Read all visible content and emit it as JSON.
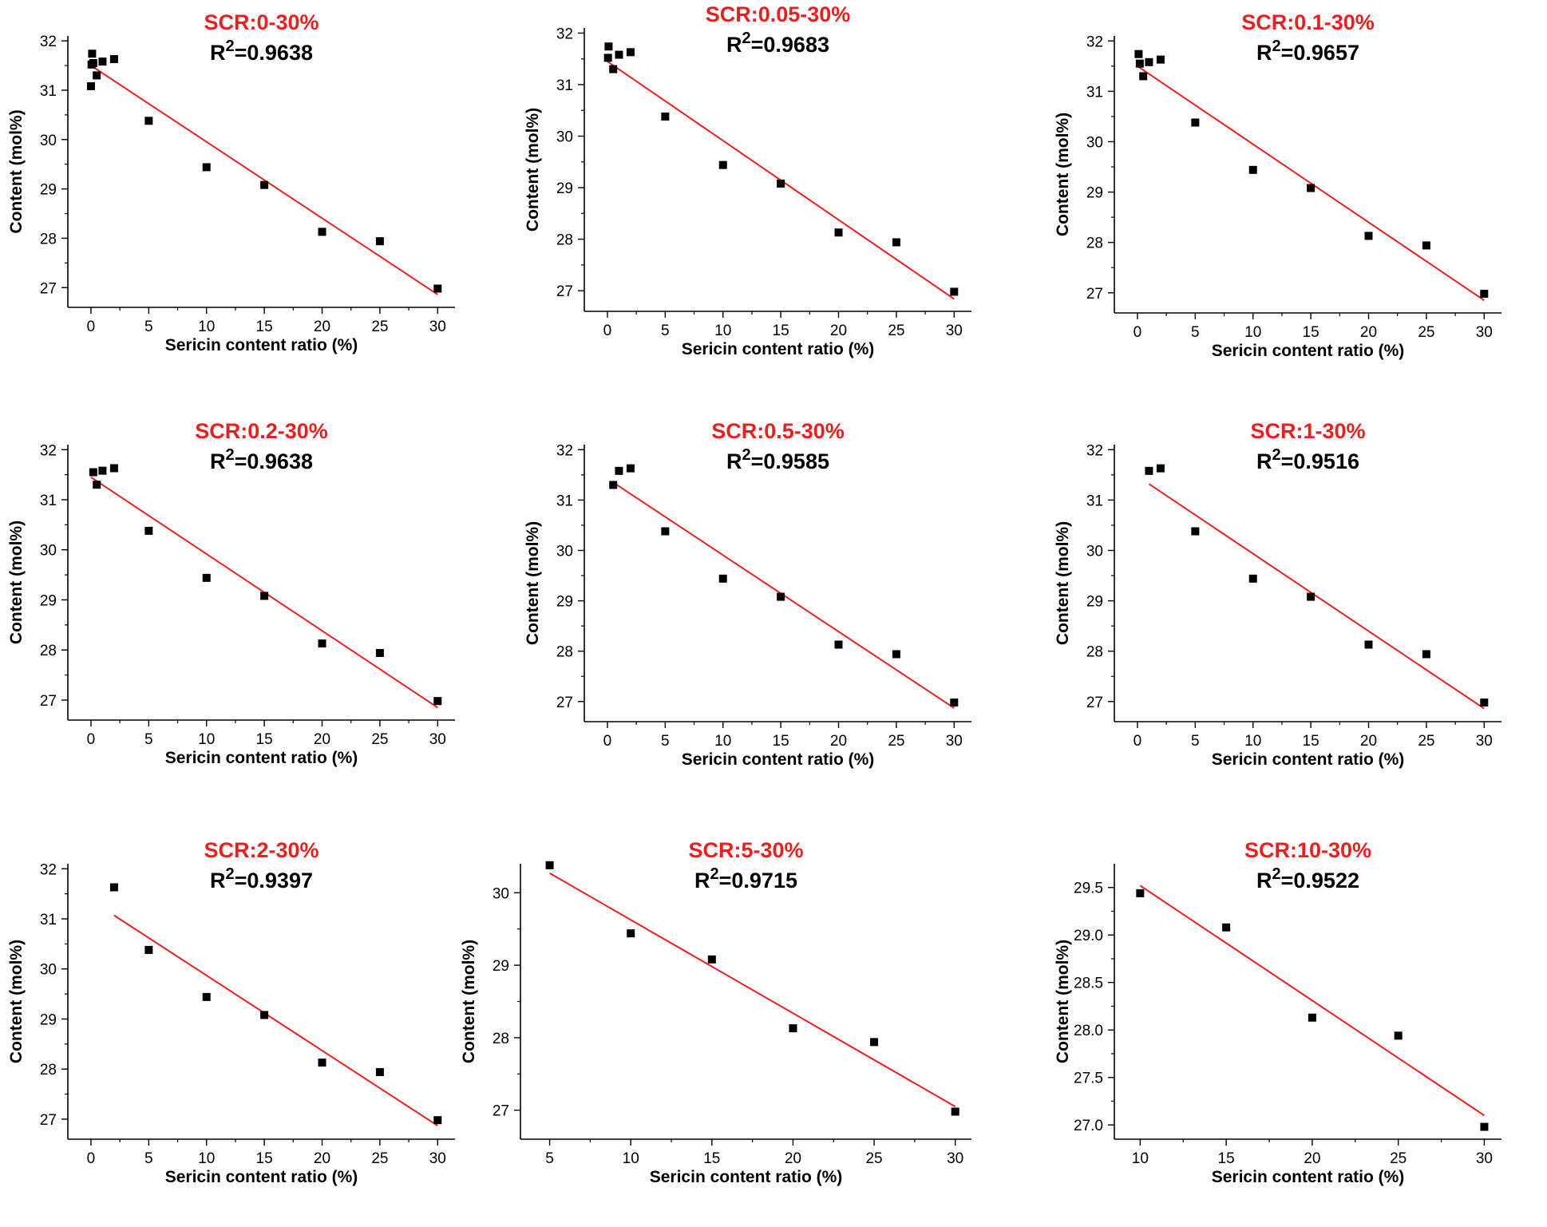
{
  "style": {
    "title_color": "#e82020",
    "fit_line_color": "#e82020",
    "marker_color": "#000000"
  },
  "chart_data": [
    {
      "type": "scatter",
      "title": "SCR:0-30%",
      "annotation": {
        "prefix": "R",
        "superscript": "2",
        "value": "=0.9638"
      },
      "xlabel": "Sericin content ratio (%)",
      "ylabel": "Content (mol%)",
      "xlim": [
        -2,
        31.5
      ],
      "ylim": [
        26.6,
        32.1
      ],
      "xticks": [
        0,
        5,
        10,
        15,
        20,
        25,
        30
      ],
      "xtick_labels": [
        "0",
        "5",
        "10",
        "15",
        "20",
        "25",
        "30"
      ],
      "yticks": [
        27,
        28,
        29,
        30,
        31,
        32
      ],
      "ytick_labels": [
        "27",
        "28",
        "29",
        "30",
        "31",
        "32"
      ],
      "points": [
        [
          0,
          31.08
        ],
        [
          0.05,
          31.52
        ],
        [
          0.1,
          31.74
        ],
        [
          0.2,
          31.55
        ],
        [
          0.5,
          31.3
        ],
        [
          1,
          31.58
        ],
        [
          2,
          31.63
        ],
        [
          5,
          30.38
        ],
        [
          10,
          29.44
        ],
        [
          15,
          29.08
        ],
        [
          20,
          28.13
        ],
        [
          25,
          27.94
        ],
        [
          30,
          26.98
        ]
      ],
      "fit_line": [
        [
          0,
          31.5
        ],
        [
          30,
          26.86
        ]
      ],
      "legend": "none",
      "grid": false
    },
    {
      "type": "scatter",
      "title": "SCR:0.05-30%",
      "annotation": {
        "prefix": "R",
        "superscript": "2",
        "value": "=0.9683"
      },
      "xlabel": "Sericin content ratio (%)",
      "ylabel": "Content (mol%)",
      "xlim": [
        -2,
        31.5
      ],
      "ylim": [
        26.6,
        32.1
      ],
      "xticks": [
        0,
        5,
        10,
        15,
        20,
        25,
        30
      ],
      "xtick_labels": [
        "0",
        "5",
        "10",
        "15",
        "20",
        "25",
        "30"
      ],
      "yticks": [
        27,
        28,
        29,
        30,
        31,
        32
      ],
      "ytick_labels": [
        "27",
        "28",
        "29",
        "30",
        "31",
        "32"
      ],
      "points": [
        [
          0.05,
          31.52
        ],
        [
          0.1,
          31.74
        ],
        [
          0.5,
          31.3
        ],
        [
          1,
          31.58
        ],
        [
          2,
          31.63
        ],
        [
          5,
          30.38
        ],
        [
          10,
          29.44
        ],
        [
          15,
          29.08
        ],
        [
          20,
          28.13
        ],
        [
          25,
          27.94
        ],
        [
          30,
          26.98
        ]
      ],
      "fit_line": [
        [
          0,
          31.45
        ],
        [
          30,
          26.84
        ]
      ],
      "legend": "none",
      "grid": false
    },
    {
      "type": "scatter",
      "title": "SCR:0.1-30%",
      "annotation": {
        "prefix": "R",
        "superscript": "2",
        "value": "=0.9657"
      },
      "xlabel": "Sericin content ratio (%)",
      "ylabel": "Content (mol%)",
      "xlim": [
        -2,
        31.5
      ],
      "ylim": [
        26.6,
        32.1
      ],
      "xticks": [
        0,
        5,
        10,
        15,
        20,
        25,
        30
      ],
      "xtick_labels": [
        "0",
        "5",
        "10",
        "15",
        "20",
        "25",
        "30"
      ],
      "yticks": [
        27,
        28,
        29,
        30,
        31,
        32
      ],
      "ytick_labels": [
        "27",
        "28",
        "29",
        "30",
        "31",
        "32"
      ],
      "points": [
        [
          0.1,
          31.74
        ],
        [
          0.2,
          31.55
        ],
        [
          0.5,
          31.3
        ],
        [
          1,
          31.58
        ],
        [
          2,
          31.63
        ],
        [
          5,
          30.38
        ],
        [
          10,
          29.44
        ],
        [
          15,
          29.08
        ],
        [
          20,
          28.13
        ],
        [
          25,
          27.94
        ],
        [
          30,
          26.98
        ]
      ],
      "fit_line": [
        [
          0,
          31.5
        ],
        [
          30,
          26.85
        ]
      ],
      "legend": "none",
      "grid": false
    },
    {
      "type": "scatter",
      "title": "SCR:0.2-30%",
      "annotation": {
        "prefix": "R",
        "superscript": "2",
        "value": "=0.9638"
      },
      "xlabel": "Sericin content ratio (%)",
      "ylabel": "Content (mol%)",
      "xlim": [
        -2,
        31.5
      ],
      "ylim": [
        26.6,
        32.1
      ],
      "xticks": [
        0,
        5,
        10,
        15,
        20,
        25,
        30
      ],
      "xtick_labels": [
        "0",
        "5",
        "10",
        "15",
        "20",
        "25",
        "30"
      ],
      "yticks": [
        27,
        28,
        29,
        30,
        31,
        32
      ],
      "ytick_labels": [
        "27",
        "28",
        "29",
        "30",
        "31",
        "32"
      ],
      "points": [
        [
          0.2,
          31.55
        ],
        [
          0.5,
          31.3
        ],
        [
          1,
          31.58
        ],
        [
          2,
          31.63
        ],
        [
          5,
          30.38
        ],
        [
          10,
          29.44
        ],
        [
          15,
          29.08
        ],
        [
          20,
          28.13
        ],
        [
          25,
          27.94
        ],
        [
          30,
          26.98
        ]
      ],
      "fit_line": [
        [
          0,
          31.45
        ],
        [
          30,
          26.85
        ]
      ],
      "legend": "none",
      "grid": false
    },
    {
      "type": "scatter",
      "title": "SCR:0.5-30%",
      "annotation": {
        "prefix": "R",
        "superscript": "2",
        "value": "=0.9585"
      },
      "xlabel": "Sericin content ratio (%)",
      "ylabel": "Content (mol%)",
      "xlim": [
        -2,
        31.5
      ],
      "ylim": [
        26.6,
        32.1
      ],
      "xticks": [
        0,
        5,
        10,
        15,
        20,
        25,
        30
      ],
      "xtick_labels": [
        "0",
        "5",
        "10",
        "15",
        "20",
        "25",
        "30"
      ],
      "yticks": [
        27,
        28,
        29,
        30,
        31,
        32
      ],
      "ytick_labels": [
        "27",
        "28",
        "29",
        "30",
        "31",
        "32"
      ],
      "points": [
        [
          0.5,
          31.3
        ],
        [
          1,
          31.58
        ],
        [
          2,
          31.63
        ],
        [
          5,
          30.38
        ],
        [
          10,
          29.44
        ],
        [
          15,
          29.08
        ],
        [
          20,
          28.13
        ],
        [
          25,
          27.94
        ],
        [
          30,
          26.98
        ]
      ],
      "fit_line": [
        [
          0.5,
          31.35
        ],
        [
          30,
          26.87
        ]
      ],
      "legend": "none",
      "grid": false
    },
    {
      "type": "scatter",
      "title": "SCR:1-30%",
      "annotation": {
        "prefix": "R",
        "superscript": "2",
        "value": "=0.9516"
      },
      "xlabel": "Sericin content ratio (%)",
      "ylabel": "Content (mol%)",
      "xlim": [
        -2,
        31.5
      ],
      "ylim": [
        26.6,
        32.1
      ],
      "xticks": [
        0,
        5,
        10,
        15,
        20,
        25,
        30
      ],
      "xtick_labels": [
        "0",
        "5",
        "10",
        "15",
        "20",
        "25",
        "30"
      ],
      "yticks": [
        27,
        28,
        29,
        30,
        31,
        32
      ],
      "ytick_labels": [
        "27",
        "28",
        "29",
        "30",
        "31",
        "32"
      ],
      "points": [
        [
          1,
          31.58
        ],
        [
          2,
          31.63
        ],
        [
          5,
          30.38
        ],
        [
          10,
          29.44
        ],
        [
          15,
          29.08
        ],
        [
          20,
          28.13
        ],
        [
          25,
          27.94
        ],
        [
          30,
          26.98
        ]
      ],
      "fit_line": [
        [
          1,
          31.32
        ],
        [
          30,
          26.86
        ]
      ],
      "legend": "none",
      "grid": false
    },
    {
      "type": "scatter",
      "title": "SCR:2-30%",
      "annotation": {
        "prefix": "R",
        "superscript": "2",
        "value": "=0.9397"
      },
      "xlabel": "Sericin content ratio (%)",
      "ylabel": "Content (mol%)",
      "xlim": [
        -2,
        31.5
      ],
      "ylim": [
        26.6,
        32.1
      ],
      "xticks": [
        0,
        5,
        10,
        15,
        20,
        25,
        30
      ],
      "xtick_labels": [
        "0",
        "5",
        "10",
        "15",
        "20",
        "25",
        "30"
      ],
      "yticks": [
        27,
        28,
        29,
        30,
        31,
        32
      ],
      "ytick_labels": [
        "27",
        "28",
        "29",
        "30",
        "31",
        "32"
      ],
      "points": [
        [
          2,
          31.63
        ],
        [
          5,
          30.38
        ],
        [
          10,
          29.44
        ],
        [
          15,
          29.08
        ],
        [
          20,
          28.13
        ],
        [
          25,
          27.94
        ],
        [
          30,
          26.98
        ]
      ],
      "fit_line": [
        [
          2,
          31.07
        ],
        [
          30,
          26.87
        ]
      ],
      "legend": "none",
      "grid": false
    },
    {
      "type": "scatter",
      "title": "SCR:5-30%",
      "annotation": {
        "prefix": "R",
        "superscript": "2",
        "value": "=0.9715"
      },
      "xlabel": "Sericin content ratio (%)",
      "ylabel": "Content (mol%)",
      "xlim": [
        3.2,
        31
      ],
      "ylim": [
        26.6,
        30.4
      ],
      "xticks": [
        5,
        10,
        15,
        20,
        25,
        30
      ],
      "xtick_labels": [
        "5",
        "10",
        "15",
        "20",
        "25",
        "30"
      ],
      "yticks": [
        27,
        28,
        29,
        30
      ],
      "ytick_labels": [
        "27",
        "28",
        "29",
        "30"
      ],
      "points": [
        [
          5,
          30.38
        ],
        [
          10,
          29.44
        ],
        [
          15,
          29.08
        ],
        [
          20,
          28.13
        ],
        [
          25,
          27.94
        ],
        [
          30,
          26.98
        ]
      ],
      "fit_line": [
        [
          5,
          30.27
        ],
        [
          30,
          27.05
        ]
      ],
      "legend": "none",
      "grid": false
    },
    {
      "type": "scatter",
      "title": "SCR:10-30%",
      "annotation": {
        "prefix": "R",
        "superscript": "2",
        "value": "=0.9522"
      },
      "xlabel": "Sericin content ratio (%)",
      "ylabel": "Content (mol%)",
      "xlim": [
        8.5,
        31
      ],
      "ylim": [
        26.85,
        29.75
      ],
      "xticks": [
        10,
        15,
        20,
        25,
        30
      ],
      "xtick_labels": [
        "10",
        "15",
        "20",
        "25",
        "30"
      ],
      "yticks": [
        27.0,
        27.5,
        28.0,
        28.5,
        29.0,
        29.5
      ],
      "ytick_labels": [
        "27.0",
        "27.5",
        "28.0",
        "28.5",
        "29.0",
        "29.5"
      ],
      "points": [
        [
          10,
          29.44
        ],
        [
          15,
          29.08
        ],
        [
          20,
          28.13
        ],
        [
          25,
          27.94
        ],
        [
          30,
          26.98
        ]
      ],
      "fit_line": [
        [
          10,
          29.52
        ],
        [
          30,
          27.1
        ]
      ],
      "legend": "none",
      "grid": false
    }
  ]
}
